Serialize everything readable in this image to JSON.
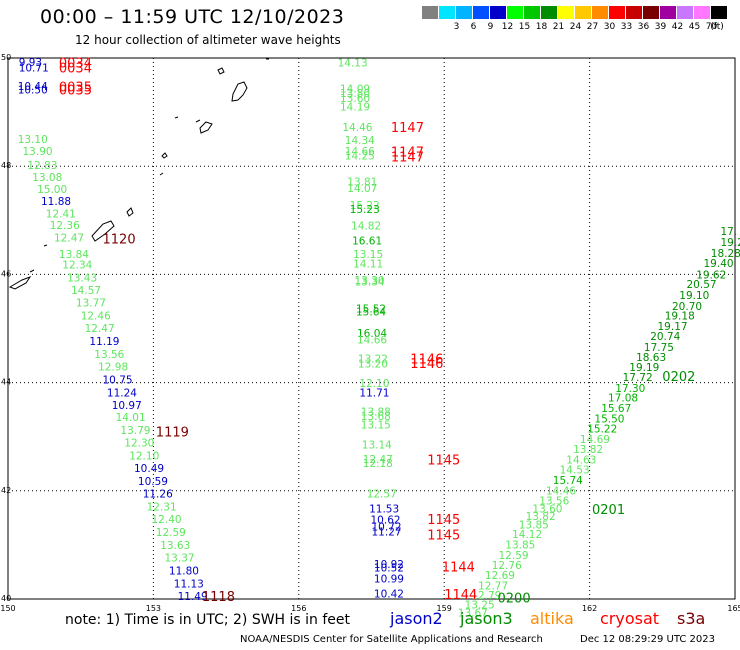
{
  "title": "00:00 – 11:59 UTC 12/10/2023",
  "subtitle": "12 hour collection of altimeter wave heights",
  "colorbar": {
    "unit_label": "(ft)",
    "bins": [
      {
        "label": "",
        "color": "#808080"
      },
      {
        "label": "3",
        "color": "#00e5ff"
      },
      {
        "label": "6",
        "color": "#00b4ff"
      },
      {
        "label": "9",
        "color": "#0050ff"
      },
      {
        "label": "12",
        "color": "#0000c8"
      },
      {
        "label": "15",
        "color": "#00ff00"
      },
      {
        "label": "18",
        "color": "#00c800"
      },
      {
        "label": "21",
        "color": "#008c00"
      },
      {
        "label": "24",
        "color": "#ffff00"
      },
      {
        "label": "27",
        "color": "#ffc800"
      },
      {
        "label": "30",
        "color": "#ff8c00"
      },
      {
        "label": "33",
        "color": "#ff0000"
      },
      {
        "label": "36",
        "color": "#c80000"
      },
      {
        "label": "39",
        "color": "#780000"
      },
      {
        "label": "42",
        "color": "#a000a0"
      },
      {
        "label": "45",
        "color": "#c878ff"
      },
      {
        "label": "70",
        "color": "#ff78ff"
      },
      {
        "label": "",
        "color": "#000000"
      }
    ]
  },
  "axes": {
    "lon_ticks": [
      "150",
      "153",
      "156",
      "159",
      "162",
      "165"
    ],
    "lat_ticks": [
      "40",
      "42",
      "44",
      "46",
      "48",
      "50"
    ]
  },
  "colors": {
    "sev_lo": "#0000c8",
    "sev_mid": "#5ee65e",
    "sev_hi": "#00b400",
    "sev_top": "#008c00",
    "time_cryosat": "#ff0000",
    "time_dark": "#780000",
    "time_jason": "#008c00"
  },
  "track_labels": [
    {
      "text": "9.93",
      "lon": 150.22,
      "lat": 49.93,
      "sev": "lo"
    },
    {
      "text": "10.71",
      "lon": 150.22,
      "lat": 49.82,
      "sev": "lo"
    },
    {
      "text": "10.44",
      "lon": 150.2,
      "lat": 49.48,
      "sev": "lo"
    },
    {
      "text": "10.50",
      "lon": 150.2,
      "lat": 49.42,
      "sev": "lo"
    },
    {
      "text": "13.10",
      "lon": 150.2,
      "lat": 48.5,
      "sev": "mid"
    },
    {
      "text": "13.90",
      "lon": 150.3,
      "lat": 48.28,
      "sev": "mid"
    },
    {
      "text": "12.83",
      "lon": 150.4,
      "lat": 48.02,
      "sev": "mid"
    },
    {
      "text": "13.08",
      "lon": 150.5,
      "lat": 47.8,
      "sev": "mid"
    },
    {
      "text": "15.00",
      "lon": 150.6,
      "lat": 47.58,
      "sev": "mid"
    },
    {
      "text": "11.88",
      "lon": 150.68,
      "lat": 47.36,
      "sev": "lo"
    },
    {
      "text": "12.41",
      "lon": 150.78,
      "lat": 47.13,
      "sev": "mid"
    },
    {
      "text": "12.36",
      "lon": 150.86,
      "lat": 46.91,
      "sev": "mid"
    },
    {
      "text": "12.47",
      "lon": 150.95,
      "lat": 46.68,
      "sev": "mid"
    },
    {
      "text": "13.84",
      "lon": 151.05,
      "lat": 46.38,
      "sev": "mid"
    },
    {
      "text": "12.34",
      "lon": 151.12,
      "lat": 46.18,
      "sev": "mid"
    },
    {
      "text": "13.43",
      "lon": 151.22,
      "lat": 45.94,
      "sev": "mid"
    },
    {
      "text": "14.57",
      "lon": 151.3,
      "lat": 45.71,
      "sev": "mid"
    },
    {
      "text": "13.77",
      "lon": 151.4,
      "lat": 45.48,
      "sev": "mid"
    },
    {
      "text": "12.46",
      "lon": 151.5,
      "lat": 45.24,
      "sev": "mid"
    },
    {
      "text": "12.47",
      "lon": 151.58,
      "lat": 45.01,
      "sev": "mid"
    },
    {
      "text": "11.19",
      "lon": 151.68,
      "lat": 44.77,
      "sev": "lo"
    },
    {
      "text": "13.56",
      "lon": 151.78,
      "lat": 44.53,
      "sev": "mid"
    },
    {
      "text": "12.98",
      "lon": 151.86,
      "lat": 44.3,
      "sev": "mid"
    },
    {
      "text": "10.75",
      "lon": 151.95,
      "lat": 44.06,
      "sev": "lo"
    },
    {
      "text": "11.24",
      "lon": 152.04,
      "lat": 43.82,
      "sev": "lo"
    },
    {
      "text": "10.97",
      "lon": 152.14,
      "lat": 43.59,
      "sev": "lo"
    },
    {
      "text": "14.01",
      "lon": 152.22,
      "lat": 43.36,
      "sev": "mid"
    },
    {
      "text": "13.79",
      "lon": 152.32,
      "lat": 43.12,
      "sev": "mid"
    },
    {
      "text": "12.30",
      "lon": 152.4,
      "lat": 42.89,
      "sev": "mid"
    },
    {
      "text": "12.10",
      "lon": 152.5,
      "lat": 42.65,
      "sev": "mid"
    },
    {
      "text": "10.49",
      "lon": 152.6,
      "lat": 42.42,
      "sev": "lo"
    },
    {
      "text": "10.59",
      "lon": 152.68,
      "lat": 42.18,
      "sev": "lo"
    },
    {
      "text": "11.26",
      "lon": 152.78,
      "lat": 41.95,
      "sev": "lo"
    },
    {
      "text": "12.31",
      "lon": 152.86,
      "lat": 41.71,
      "sev": "mid"
    },
    {
      "text": "12.40",
      "lon": 152.96,
      "lat": 41.48,
      "sev": "mid"
    },
    {
      "text": "12.59",
      "lon": 153.05,
      "lat": 41.24,
      "sev": "mid"
    },
    {
      "text": "13.63",
      "lon": 153.14,
      "lat": 41.0,
      "sev": "mid"
    },
    {
      "text": "13.37",
      "lon": 153.23,
      "lat": 40.77,
      "sev": "mid"
    },
    {
      "text": "11.80",
      "lon": 153.32,
      "lat": 40.53,
      "sev": "lo"
    },
    {
      "text": "11.13",
      "lon": 153.42,
      "lat": 40.29,
      "sev": "lo"
    },
    {
      "text": "11.49",
      "lon": 153.5,
      "lat": 40.06,
      "sev": "lo"
    },
    {
      "text": "14.13",
      "lon": 156.8,
      "lat": 49.92,
      "sev": "mid"
    },
    {
      "text": "14.09",
      "lon": 156.85,
      "lat": 49.44,
      "sev": "mid"
    },
    {
      "text": "13.80",
      "lon": 156.85,
      "lat": 49.35,
      "sev": "mid"
    },
    {
      "text": "13.60",
      "lon": 156.85,
      "lat": 49.26,
      "sev": "mid"
    },
    {
      "text": "14.19",
      "lon": 156.85,
      "lat": 49.1,
      "sev": "mid"
    },
    {
      "text": "14.46",
      "lon": 156.9,
      "lat": 48.72,
      "sev": "mid"
    },
    {
      "text": "14.34",
      "lon": 156.95,
      "lat": 48.48,
      "sev": "mid"
    },
    {
      "text": "14.66",
      "lon": 156.95,
      "lat": 48.28,
      "sev": "mid"
    },
    {
      "text": "14.25",
      "lon": 156.95,
      "lat": 48.2,
      "sev": "mid"
    },
    {
      "text": "13.81",
      "lon": 157.0,
      "lat": 47.72,
      "sev": "mid"
    },
    {
      "text": "14.07",
      "lon": 157.0,
      "lat": 47.6,
      "sev": "mid"
    },
    {
      "text": "15.22",
      "lon": 157.05,
      "lat": 47.28,
      "sev": "mid"
    },
    {
      "text": "15.23",
      "lon": 157.05,
      "lat": 47.21,
      "sev": "hi"
    },
    {
      "text": "14.82",
      "lon": 157.08,
      "lat": 46.9,
      "sev": "mid"
    },
    {
      "text": "16.61",
      "lon": 157.1,
      "lat": 46.63,
      "sev": "hi"
    },
    {
      "text": "13.15",
      "lon": 157.12,
      "lat": 46.38,
      "sev": "mid"
    },
    {
      "text": "14.11",
      "lon": 157.12,
      "lat": 46.2,
      "sev": "mid"
    },
    {
      "text": "13.30",
      "lon": 157.15,
      "lat": 45.9,
      "sev": "mid"
    },
    {
      "text": "13.34",
      "lon": 157.15,
      "lat": 45.87,
      "sev": "mid"
    },
    {
      "text": "15.52",
      "lon": 157.18,
      "lat": 45.37,
      "sev": "hi"
    },
    {
      "text": "15.64",
      "lon": 157.18,
      "lat": 45.31,
      "sev": "hi"
    },
    {
      "text": "16.04",
      "lon": 157.2,
      "lat": 44.92,
      "sev": "hi"
    },
    {
      "text": "14.66",
      "lon": 157.2,
      "lat": 44.8,
      "sev": "mid"
    },
    {
      "text": "13.22",
      "lon": 157.22,
      "lat": 44.45,
      "sev": "mid"
    },
    {
      "text": "13.20",
      "lon": 157.22,
      "lat": 44.35,
      "sev": "mid"
    },
    {
      "text": "12.10",
      "lon": 157.25,
      "lat": 43.99,
      "sev": "mid"
    },
    {
      "text": "11.71",
      "lon": 157.25,
      "lat": 43.82,
      "sev": "lo"
    },
    {
      "text": "13.88",
      "lon": 157.28,
      "lat": 43.47,
      "sev": "mid"
    },
    {
      "text": "13.68",
      "lon": 157.28,
      "lat": 43.38,
      "sev": "mid"
    },
    {
      "text": "13.15",
      "lon": 157.28,
      "lat": 43.23,
      "sev": "mid"
    },
    {
      "text": "13.14",
      "lon": 157.3,
      "lat": 42.86,
      "sev": "mid"
    },
    {
      "text": "12.47",
      "lon": 157.32,
      "lat": 42.59,
      "sev": "mid"
    },
    {
      "text": "12.18",
      "lon": 157.32,
      "lat": 42.51,
      "sev": "mid"
    },
    {
      "text": "12.57",
      "lon": 157.4,
      "lat": 41.95,
      "sev": "mid"
    },
    {
      "text": "11.53",
      "lon": 157.45,
      "lat": 41.67,
      "sev": "lo"
    },
    {
      "text": "10.62",
      "lon": 157.48,
      "lat": 41.47,
      "sev": "lo"
    },
    {
      "text": "10.72",
      "lon": 157.5,
      "lat": 41.34,
      "sev": "lo"
    },
    {
      "text": "11.27",
      "lon": 157.5,
      "lat": 41.25,
      "sev": "lo"
    },
    {
      "text": "10.92",
      "lon": 157.55,
      "lat": 40.65,
      "sev": "lo"
    },
    {
      "text": "10.52",
      "lon": 157.55,
      "lat": 40.58,
      "sev": "lo"
    },
    {
      "text": "10.99",
      "lon": 157.55,
      "lat": 40.38,
      "sev": "lo"
    },
    {
      "text": "10.42",
      "lon": 157.55,
      "lat": 40.1,
      "sev": "lo"
    },
    {
      "text": "17.",
      "lon": 164.7,
      "lat": 46.8,
      "sev": "top"
    },
    {
      "text": "19.2",
      "lon": 164.7,
      "lat": 46.6,
      "sev": "top"
    },
    {
      "text": "18.28",
      "lon": 164.5,
      "lat": 46.4,
      "sev": "top"
    },
    {
      "text": "19.40",
      "lon": 164.35,
      "lat": 46.21,
      "sev": "top"
    },
    {
      "text": "19.62",
      "lon": 164.2,
      "lat": 46.0,
      "sev": "top"
    },
    {
      "text": "20.57",
      "lon": 164.0,
      "lat": 45.82,
      "sev": "top"
    },
    {
      "text": "19.10",
      "lon": 163.85,
      "lat": 45.62,
      "sev": "top"
    },
    {
      "text": "20.70",
      "lon": 163.7,
      "lat": 45.42,
      "sev": "top"
    },
    {
      "text": "19.18",
      "lon": 163.55,
      "lat": 45.24,
      "sev": "top"
    },
    {
      "text": "19.17",
      "lon": 163.4,
      "lat": 45.05,
      "sev": "top"
    },
    {
      "text": "20.74",
      "lon": 163.25,
      "lat": 44.86,
      "sev": "top"
    },
    {
      "text": "17.75",
      "lon": 163.12,
      "lat": 44.66,
      "sev": "top"
    },
    {
      "text": "18.63",
      "lon": 162.96,
      "lat": 44.47,
      "sev": "top"
    },
    {
      "text": "19.19",
      "lon": 162.82,
      "lat": 44.29,
      "sev": "top"
    },
    {
      "text": "17.72",
      "lon": 162.68,
      "lat": 44.1,
      "sev": "top"
    },
    {
      "text": "17.30",
      "lon": 162.53,
      "lat": 43.9,
      "sev": "hi"
    },
    {
      "text": "17.08",
      "lon": 162.38,
      "lat": 43.72,
      "sev": "hi"
    },
    {
      "text": "15.67",
      "lon": 162.24,
      "lat": 43.53,
      "sev": "hi"
    },
    {
      "text": "15.50",
      "lon": 162.1,
      "lat": 43.34,
      "sev": "hi"
    },
    {
      "text": "15.22",
      "lon": 161.95,
      "lat": 43.15,
      "sev": "hi"
    },
    {
      "text": "14.69",
      "lon": 161.8,
      "lat": 42.96,
      "sev": "mid"
    },
    {
      "text": "13.82",
      "lon": 161.66,
      "lat": 42.77,
      "sev": "mid"
    },
    {
      "text": "14.63",
      "lon": 161.52,
      "lat": 42.58,
      "sev": "mid"
    },
    {
      "text": "14.53",
      "lon": 161.38,
      "lat": 42.39,
      "sev": "mid"
    },
    {
      "text": "15.74",
      "lon": 161.24,
      "lat": 42.2,
      "sev": "hi"
    },
    {
      "text": "14.46",
      "lon": 161.1,
      "lat": 42.01,
      "sev": "mid"
    },
    {
      "text": "13.56",
      "lon": 160.96,
      "lat": 41.82,
      "sev": "mid"
    },
    {
      "text": "13.60",
      "lon": 160.82,
      "lat": 41.67,
      "sev": "mid"
    },
    {
      "text": "13.82",
      "lon": 160.68,
      "lat": 41.53,
      "sev": "mid"
    },
    {
      "text": "13.85",
      "lon": 160.54,
      "lat": 41.38,
      "sev": "mid"
    },
    {
      "text": "14.12",
      "lon": 160.4,
      "lat": 41.2,
      "sev": "mid"
    },
    {
      "text": "13.85",
      "lon": 160.26,
      "lat": 41.01,
      "sev": "mid"
    },
    {
      "text": "12.59",
      "lon": 160.12,
      "lat": 40.81,
      "sev": "mid"
    },
    {
      "text": "12.76",
      "lon": 159.98,
      "lat": 40.63,
      "sev": "mid"
    },
    {
      "text": "12.69",
      "lon": 159.84,
      "lat": 40.44,
      "sev": "mid"
    },
    {
      "text": "12.77",
      "lon": 159.7,
      "lat": 40.25,
      "sev": "mid"
    },
    {
      "text": "12.79",
      "lon": 159.56,
      "lat": 40.07,
      "sev": "mid"
    },
    {
      "text": "13.25",
      "lon": 159.42,
      "lat": 39.9,
      "sev": "mid"
    },
    {
      "text": "13.67",
      "lon": 159.28,
      "lat": 39.75,
      "sev": "mid"
    }
  ],
  "time_labels": [
    {
      "text": "0034",
      "lon": 151.05,
      "lat": 49.92,
      "sat": "cryosat"
    },
    {
      "text": "0034",
      "lon": 151.05,
      "lat": 49.82,
      "sat": "cryosat"
    },
    {
      "text": "0035",
      "lon": 151.05,
      "lat": 49.47,
      "sat": "cryosat"
    },
    {
      "text": "0035",
      "lon": 151.05,
      "lat": 49.42,
      "sat": "cryosat"
    },
    {
      "text": "1120",
      "lon": 151.95,
      "lat": 46.66,
      "sat": "dark"
    },
    {
      "text": "1119",
      "lon": 153.05,
      "lat": 43.1,
      "sat": "dark"
    },
    {
      "text": "1118",
      "lon": 154.0,
      "lat": 40.06,
      "sat": "dark"
    },
    {
      "text": "1147",
      "lon": 157.9,
      "lat": 48.72,
      "sat": "cryosat"
    },
    {
      "text": "1147",
      "lon": 157.9,
      "lat": 48.27,
      "sat": "cryosat"
    },
    {
      "text": "1147",
      "lon": 157.9,
      "lat": 48.18,
      "sat": "cryosat"
    },
    {
      "text": "1146",
      "lon": 158.3,
      "lat": 44.45,
      "sat": "cryosat"
    },
    {
      "text": "1146",
      "lon": 158.3,
      "lat": 44.36,
      "sat": "cryosat"
    },
    {
      "text": "1145",
      "lon": 158.65,
      "lat": 42.58,
      "sat": "cryosat"
    },
    {
      "text": "1145",
      "lon": 158.65,
      "lat": 41.48,
      "sat": "cryosat"
    },
    {
      "text": "1145",
      "lon": 158.65,
      "lat": 41.19,
      "sat": "cryosat"
    },
    {
      "text": "1144",
      "lon": 158.95,
      "lat": 40.6,
      "sat": "cryosat"
    },
    {
      "text": "1144",
      "lon": 159.0,
      "lat": 40.09,
      "sat": "cryosat"
    },
    {
      "text": "0202",
      "lon": 163.5,
      "lat": 44.12,
      "sat": "jason"
    },
    {
      "text": "0201",
      "lon": 162.05,
      "lat": 41.66,
      "sat": "jason"
    },
    {
      "text": "0200",
      "lon": 160.1,
      "lat": 40.03,
      "sat": "jason"
    }
  ],
  "note": {
    "text": "note: 1) Time is in UTC; 2) SWH is in feet",
    "satellites": [
      {
        "name": "jason2",
        "color": "#0000c8"
      },
      {
        "name": "jason3",
        "color": "#008c00"
      },
      {
        "name": "altika",
        "color": "#ff8c00"
      },
      {
        "name": "cryosat",
        "color": "#ff0000"
      },
      {
        "name": "s3a",
        "color": "#780000"
      }
    ]
  },
  "footer": {
    "credit": "NOAA/NESDIS Center for Satellite Applications and Research",
    "timestamp": "Dec 12 08:29:29 UTC 2023"
  }
}
